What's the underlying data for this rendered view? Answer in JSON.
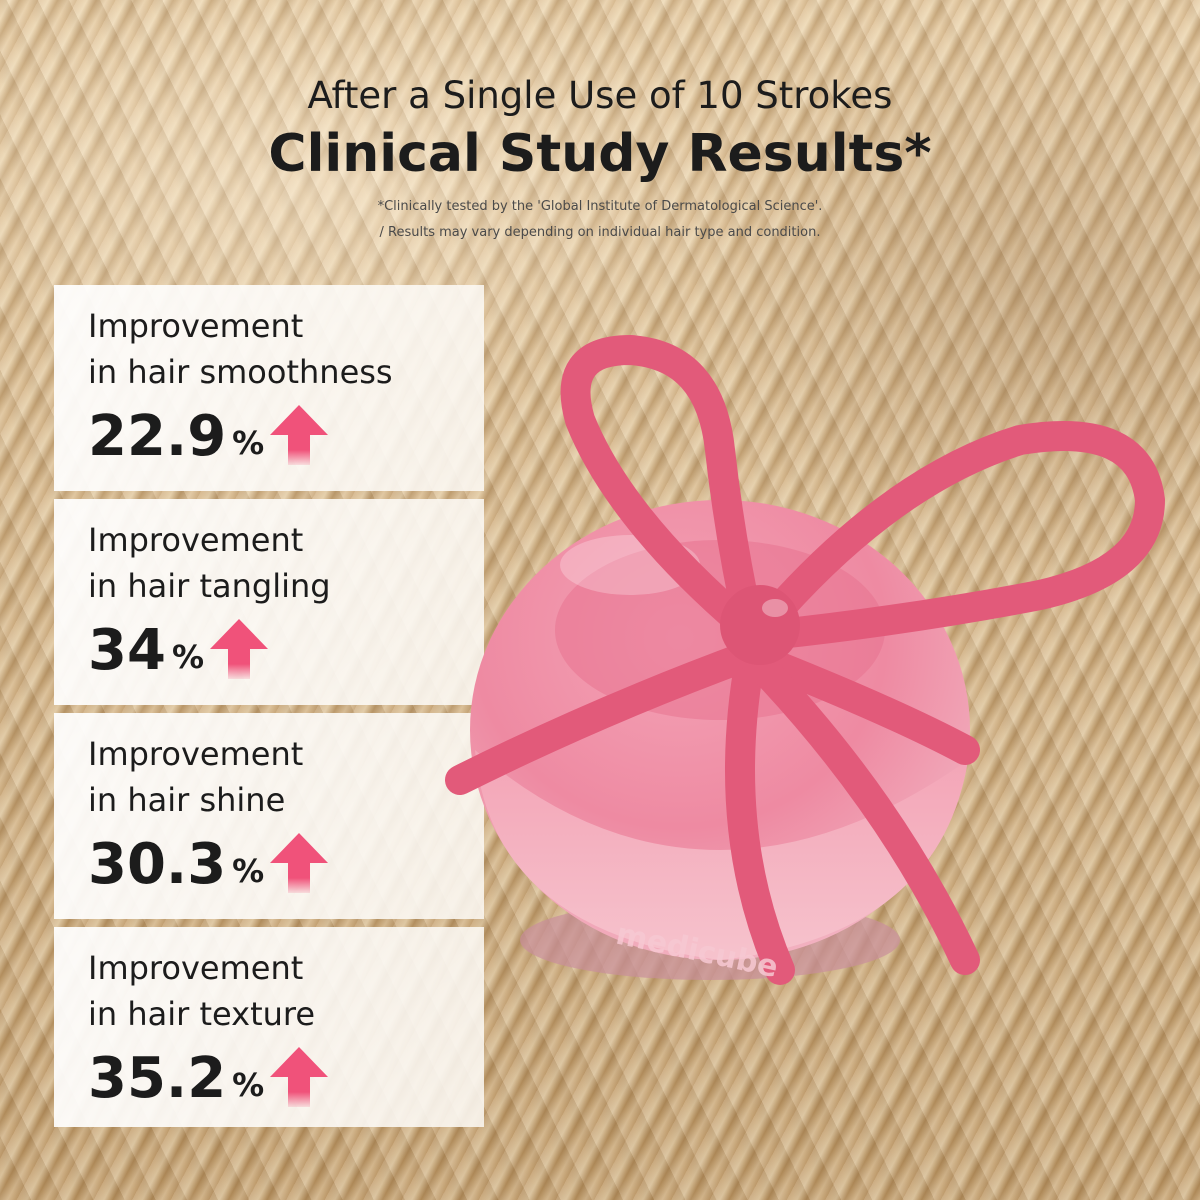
{
  "header": {
    "subtitle": "After a Single Use of 10 Strokes",
    "title": "Clinical Study Results*",
    "footnote_1": "*Clinically tested by the 'Global Institute of Dermatological Science'.",
    "footnote_2": "/ Results may vary depending on individual hair type and condition."
  },
  "results": [
    {
      "label_1": "Improvement",
      "label_2": "in hair smoothness",
      "value": "22.9",
      "unit": "%"
    },
    {
      "label_1": "Improvement",
      "label_2": "in hair tangling",
      "value": "34",
      "unit": "%"
    },
    {
      "label_1": "Improvement",
      "label_2": "in hair shine",
      "value": "30.3",
      "unit": "%"
    },
    {
      "label_1": "Improvement",
      "label_2": "in hair texture",
      "value": "35.2",
      "unit": "%"
    }
  ],
  "product": {
    "brand_logo_text": "medicube",
    "body_color": "#f08aa2",
    "ribbon_color": "#e8597a"
  },
  "colors": {
    "arrow": "#f0527a",
    "text": "#1c1c1c"
  },
  "icons": {
    "increase": "up-arrow-icon"
  }
}
